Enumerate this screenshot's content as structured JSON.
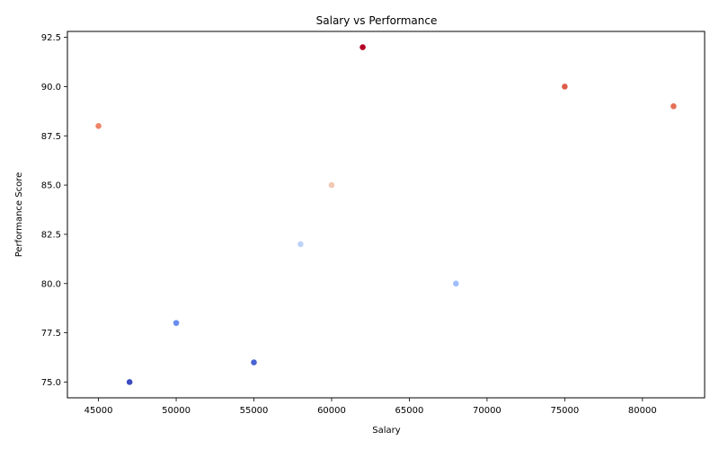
{
  "chart_data": {
    "type": "scatter",
    "title": "Salary vs Performance",
    "xlabel": "Salary",
    "ylabel": "Performance Score",
    "xlim": [
      43000,
      84000
    ],
    "ylim": [
      74.2,
      92.8
    ],
    "xticks": [
      45000,
      50000,
      55000,
      60000,
      65000,
      70000,
      75000,
      80000
    ],
    "yticks": [
      75.0,
      77.5,
      80.0,
      82.5,
      85.0,
      87.5,
      90.0,
      92.5
    ],
    "xtick_labels": [
      "45000",
      "50000",
      "55000",
      "60000",
      "65000",
      "70000",
      "75000",
      "80000"
    ],
    "ytick_labels": [
      "75.0",
      "77.5",
      "80.0",
      "82.5",
      "85.0",
      "87.5",
      "90.0",
      "92.5"
    ],
    "grid": false,
    "colormap": "coolwarm (colored by performance score)",
    "points": [
      {
        "x": 45000,
        "y": 88,
        "color": "#ee8468"
      },
      {
        "x": 47000,
        "y": 75,
        "color": "#3b4cc0"
      },
      {
        "x": 50000,
        "y": 78,
        "color": "#6b8df0"
      },
      {
        "x": 55000,
        "y": 76,
        "color": "#4a63d3"
      },
      {
        "x": 58000,
        "y": 82,
        "color": "#bcd2f7"
      },
      {
        "x": 60000,
        "y": 85,
        "color": "#f2c9b4"
      },
      {
        "x": 62000,
        "y": 92,
        "color": "#b40426"
      },
      {
        "x": 68000,
        "y": 80,
        "color": "#9ebeff"
      },
      {
        "x": 75000,
        "y": 90,
        "color": "#dc5d4a"
      },
      {
        "x": 82000,
        "y": 89,
        "color": "#e57058"
      }
    ]
  }
}
